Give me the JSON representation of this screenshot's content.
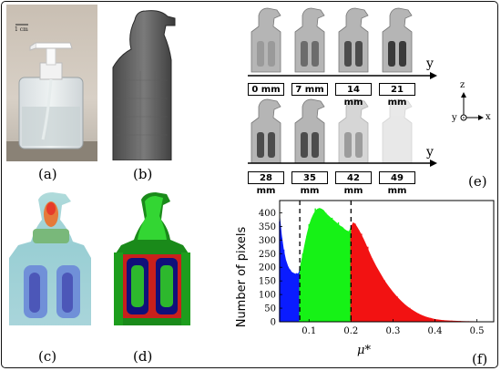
{
  "panels": {
    "a": {
      "label": "(a)",
      "scale_bar_text": "1 cm"
    },
    "b": {
      "label": "(b)"
    },
    "c": {
      "label": "(c)"
    },
    "d": {
      "label": "(d)"
    },
    "e": {
      "label": "(e)",
      "axis_label_y": "y",
      "depths_row1": [
        "0 mm",
        "7 mm",
        "14 mm",
        "21 mm"
      ],
      "depths_row2": [
        "28 mm",
        "35 mm",
        "42 mm",
        "49 mm"
      ],
      "triad": {
        "z": "z",
        "y": "y",
        "x": "x"
      }
    },
    "f": {
      "label": "(f)"
    }
  },
  "chart_data": {
    "type": "bar",
    "ylabel": "Number of pixels",
    "xlabel": "μ*",
    "x_ticks": [
      0.1,
      0.2,
      0.3,
      0.4,
      0.5
    ],
    "x_tick_labels": [
      "0.1",
      "0.2",
      "0.3",
      "0.4",
      "0.5"
    ],
    "y_ticks": [
      0,
      50,
      100,
      150,
      200,
      250,
      300,
      350,
      400
    ],
    "y_tick_labels": [
      "0",
      "50",
      "100",
      "150",
      "200",
      "250",
      "300",
      "350",
      "400"
    ],
    "xlim": [
      0.03,
      0.54
    ],
    "ylim": [
      0,
      445
    ],
    "thresholds": [
      0.078,
      0.2
    ],
    "series": [
      {
        "color": "#0a1cff",
        "x_range": [
          0.03,
          0.078
        ]
      },
      {
        "color": "#16f216",
        "x_range": [
          0.078,
          0.2
        ]
      },
      {
        "color": "#f21212",
        "x_range": [
          0.2,
          0.54
        ]
      }
    ],
    "envelope": {
      "x": [
        0.03,
        0.035,
        0.04,
        0.045,
        0.05,
        0.055,
        0.06,
        0.065,
        0.07,
        0.075,
        0.078,
        0.08,
        0.085,
        0.09,
        0.095,
        0.1,
        0.105,
        0.11,
        0.115,
        0.12,
        0.125,
        0.13,
        0.135,
        0.14,
        0.145,
        0.15,
        0.155,
        0.16,
        0.165,
        0.17,
        0.175,
        0.18,
        0.185,
        0.19,
        0.195,
        0.2,
        0.205,
        0.21,
        0.215,
        0.22,
        0.225,
        0.23,
        0.235,
        0.24,
        0.245,
        0.25,
        0.26,
        0.27,
        0.28,
        0.29,
        0.3,
        0.31,
        0.32,
        0.33,
        0.34,
        0.35,
        0.36,
        0.37,
        0.38,
        0.39,
        0.4,
        0.42,
        0.44,
        0.46,
        0.48,
        0.5,
        0.52,
        0.54
      ],
      "y": [
        400,
        320,
        265,
        228,
        205,
        190,
        182,
        178,
        175,
        180,
        195,
        215,
        250,
        290,
        325,
        355,
        378,
        395,
        408,
        415,
        418,
        415,
        410,
        400,
        392,
        385,
        378,
        372,
        365,
        358,
        352,
        348,
        340,
        335,
        332,
        350,
        365,
        360,
        348,
        335,
        320,
        305,
        288,
        270,
        252,
        235,
        205,
        178,
        152,
        130,
        110,
        92,
        76,
        62,
        50,
        40,
        31,
        24,
        18,
        14,
        10,
        6,
        4,
        3,
        2,
        1.5,
        1,
        0.5
      ]
    }
  },
  "colors": {
    "blue": "#0a1cff",
    "green": "#16f216",
    "red": "#f21212"
  }
}
